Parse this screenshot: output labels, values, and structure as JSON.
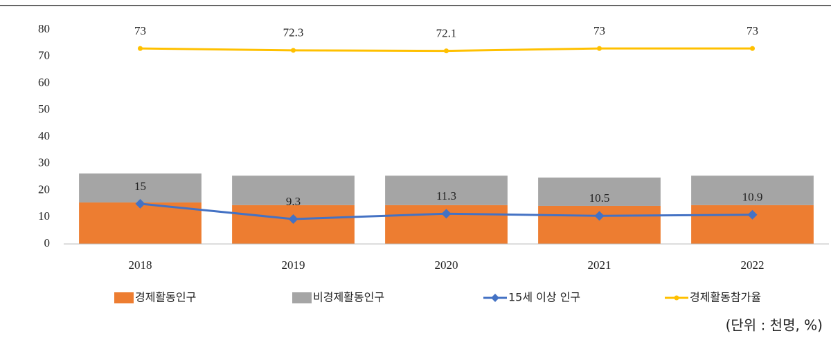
{
  "chart_data": {
    "type": "bar",
    "stacked": true,
    "categories": [
      "2018",
      "2019",
      "2020",
      "2021",
      "2022"
    ],
    "series": [
      {
        "name": "경제활동인구",
        "type": "bar",
        "color": "#ED7D31",
        "values": [
          15.5,
          14.5,
          14.5,
          14.2,
          14.5
        ]
      },
      {
        "name": "비경제활동인구",
        "type": "bar",
        "color": "#A5A5A5",
        "values": [
          10.8,
          11,
          11,
          10.6,
          11
        ]
      },
      {
        "name": "15세 이상 인구",
        "type": "line",
        "color": "#4472C4",
        "marker": "diamond",
        "data_labels": true,
        "values": [
          15,
          9.3,
          11.3,
          10.5,
          10.9
        ]
      },
      {
        "name": "경제활동참가율",
        "type": "line",
        "color": "#FFC000",
        "marker": "circle",
        "data_labels": true,
        "values": [
          73,
          72.3,
          72.1,
          73,
          73
        ]
      }
    ],
    "ylim": [
      0,
      80
    ],
    "yticks": [
      0,
      10,
      20,
      30,
      40,
      50,
      60,
      70,
      80
    ],
    "grid": false,
    "legend": "bottom",
    "note": "(단위 : 천명, %)"
  }
}
